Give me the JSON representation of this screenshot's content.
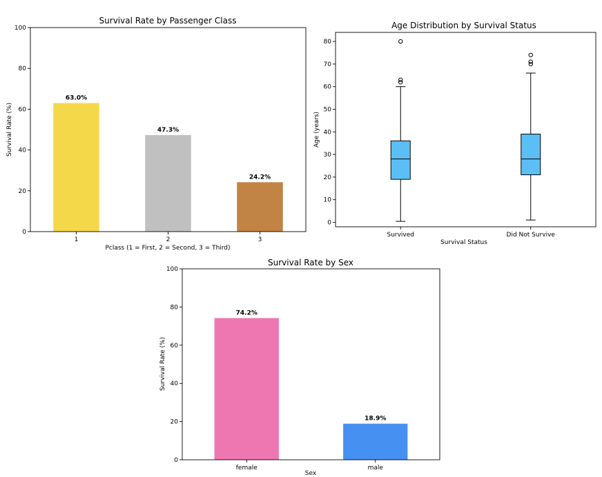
{
  "chart_data": [
    {
      "type": "bar",
      "title": "Survival Rate by Passenger Class",
      "xlabel": "Pclass (1 = First, 2 = Second, 3 = Third)",
      "ylabel": "Survival Rate (%)",
      "categories": [
        "1",
        "2",
        "3"
      ],
      "values": [
        63.0,
        47.3,
        24.2
      ],
      "data_labels": [
        "63.0%",
        "47.3%",
        "24.2%"
      ],
      "colors": [
        "#f5d84a",
        "#c0c0c0",
        "#c28444"
      ],
      "ylim": [
        0,
        100
      ],
      "yticks": [
        0,
        20,
        40,
        60,
        80,
        100
      ],
      "grid": false
    },
    {
      "type": "box",
      "title": "Age Distribution by Survival Status",
      "xlabel": "Survival Status",
      "ylabel": "Age (years)",
      "categories": [
        "Survived",
        "Did Not Survive"
      ],
      "boxes": [
        {
          "whisker_low": 0.4,
          "q1": 19,
          "median": 28,
          "q3": 36,
          "whisker_high": 60,
          "outliers": [
            62,
            63,
            80
          ]
        },
        {
          "whisker_low": 1,
          "q1": 21,
          "median": 28,
          "q3": 39,
          "whisker_high": 66,
          "outliers": [
            70,
            71,
            74
          ]
        }
      ],
      "color": "#5bbff5",
      "ylim": [
        -2,
        84
      ],
      "yticks": [
        0,
        10,
        20,
        30,
        40,
        50,
        60,
        70,
        80
      ],
      "grid": false
    },
    {
      "type": "bar",
      "title": "Survival Rate by Sex",
      "xlabel": "Sex",
      "ylabel": "Survival Rate (%)",
      "categories": [
        "female",
        "male"
      ],
      "values": [
        74.2,
        18.9
      ],
      "data_labels": [
        "74.2%",
        "18.9%"
      ],
      "colors": [
        "#ee76b1",
        "#4690f2"
      ],
      "ylim": [
        0,
        100
      ],
      "yticks": [
        0,
        20,
        40,
        60,
        80,
        100
      ],
      "grid": false
    }
  ]
}
